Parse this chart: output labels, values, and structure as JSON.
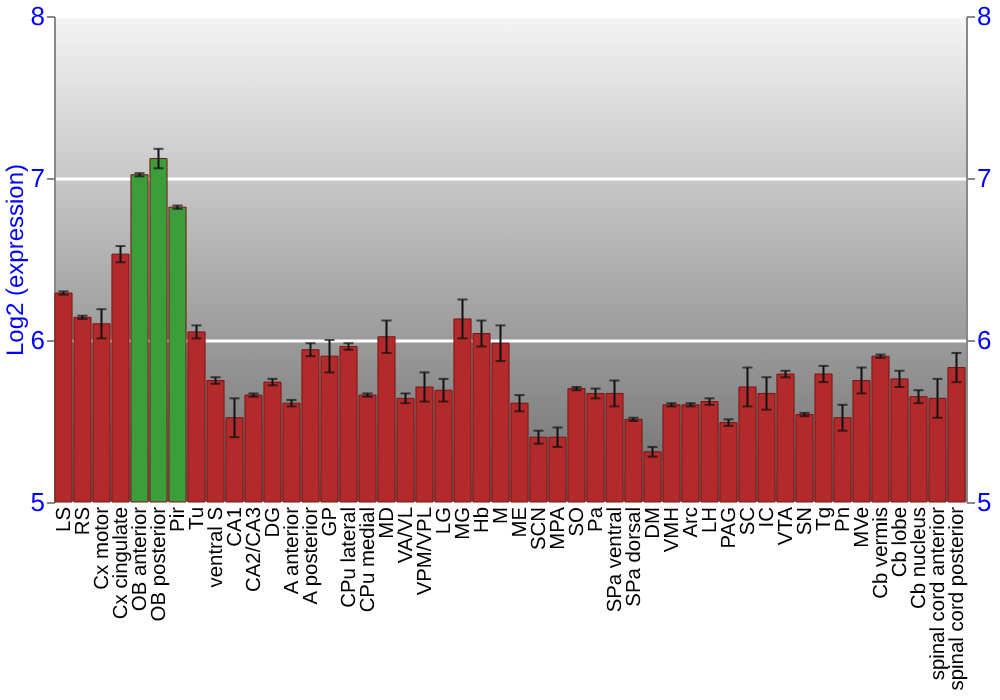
{
  "chart_data": {
    "type": "bar",
    "ylabel": "Log2 (expression)",
    "categories": [
      "LS",
      "RS",
      "Cx motor",
      "Cx cingulate",
      "OB anterior",
      "OB posterior",
      "Pir",
      "Tu",
      "ventral S",
      "CA1",
      "CA2/CA3",
      "DG",
      "A anterior",
      "A posterior",
      "GP",
      "CPu lateral",
      "CPu medial",
      "MD",
      "VA/VL",
      "VPM/VPL",
      "LG",
      "MG",
      "Hb",
      "M",
      "ME",
      "SCN",
      "MPA",
      "SO",
      "Pa",
      "SPa ventral",
      "SPa dorsal",
      "DM",
      "VMH",
      "Arc",
      "LH",
      "PAG",
      "SC",
      "IC",
      "VTA",
      "SN",
      "Tg",
      "Pn",
      "MVe",
      "Cb vermis",
      "Cb lobe",
      "Cb nucleus",
      "spinal cord anterior",
      "spinal cord posterior"
    ],
    "values": [
      6.29,
      6.14,
      6.1,
      6.53,
      7.02,
      7.12,
      6.82,
      6.05,
      5.75,
      5.52,
      5.66,
      5.74,
      5.61,
      5.94,
      5.9,
      5.96,
      5.66,
      6.02,
      5.64,
      5.71,
      5.69,
      6.13,
      6.04,
      5.98,
      5.61,
      5.4,
      5.4,
      5.7,
      5.67,
      5.67,
      5.51,
      5.31,
      5.6,
      5.6,
      5.62,
      5.49,
      5.71,
      5.67,
      5.79,
      5.54,
      5.79,
      5.52,
      5.75,
      5.9,
      5.76,
      5.65,
      5.64,
      5.83
    ],
    "errors": [
      0.01,
      0.01,
      0.09,
      0.05,
      0.01,
      0.06,
      0.01,
      0.04,
      0.02,
      0.12,
      0.01,
      0.02,
      0.02,
      0.04,
      0.1,
      0.02,
      0.01,
      0.1,
      0.03,
      0.09,
      0.07,
      0.12,
      0.08,
      0.11,
      0.05,
      0.04,
      0.06,
      0.01,
      0.03,
      0.08,
      0.01,
      0.03,
      0.01,
      0.01,
      0.02,
      0.02,
      0.12,
      0.1,
      0.02,
      0.01,
      0.05,
      0.08,
      0.08,
      0.01,
      0.05,
      0.04,
      0.12,
      0.09
    ],
    "colors": [
      "#b22a2a",
      "#b22a2a",
      "#b22a2a",
      "#b22a2a",
      "#3a9e3a",
      "#3a9e3a",
      "#3a9e3a",
      "#b22a2a",
      "#b22a2a",
      "#b22a2a",
      "#b22a2a",
      "#b22a2a",
      "#b22a2a",
      "#b22a2a",
      "#b22a2a",
      "#b22a2a",
      "#b22a2a",
      "#b22a2a",
      "#b22a2a",
      "#b22a2a",
      "#b22a2a",
      "#b22a2a",
      "#b22a2a",
      "#b22a2a",
      "#b22a2a",
      "#b22a2a",
      "#b22a2a",
      "#b22a2a",
      "#b22a2a",
      "#b22a2a",
      "#b22a2a",
      "#b22a2a",
      "#b22a2a",
      "#b22a2a",
      "#b22a2a",
      "#b22a2a",
      "#b22a2a",
      "#b22a2a",
      "#b22a2a",
      "#b22a2a",
      "#b22a2a",
      "#b22a2a",
      "#b22a2a",
      "#b22a2a",
      "#b22a2a",
      "#b22a2a",
      "#b22a2a",
      "#b22a2a"
    ],
    "ylim": [
      5,
      8
    ],
    "yticks": [
      5,
      6,
      7,
      8
    ],
    "y2lim": [
      5,
      8
    ],
    "y2ticks": [
      5,
      6,
      7,
      8
    ],
    "grid": "y"
  }
}
